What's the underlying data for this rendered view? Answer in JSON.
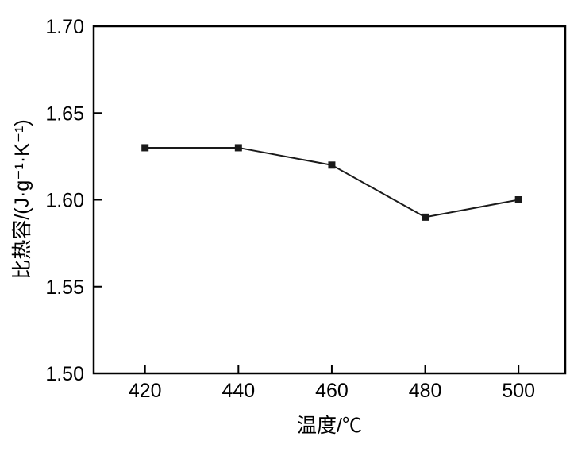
{
  "chart_data": {
    "type": "line",
    "title": "",
    "xlabel": "温度/℃",
    "ylabel": "比热容/(J·g⁻¹·K⁻¹)",
    "x": [
      420,
      440,
      460,
      480,
      500
    ],
    "y": [
      1.63,
      1.63,
      1.62,
      1.59,
      1.6
    ],
    "xlim": [
      409,
      510
    ],
    "ylim": [
      1.5,
      1.7
    ],
    "xticks": [
      420,
      440,
      460,
      480,
      500
    ],
    "yticks": [
      1.5,
      1.55,
      1.6,
      1.65,
      1.7
    ],
    "grid": false,
    "legend": "none",
    "marker": "filled-square",
    "marker_size": 9,
    "line_color": "#1a1a1a",
    "axis_color": "#000000",
    "background": "#ffffff"
  }
}
